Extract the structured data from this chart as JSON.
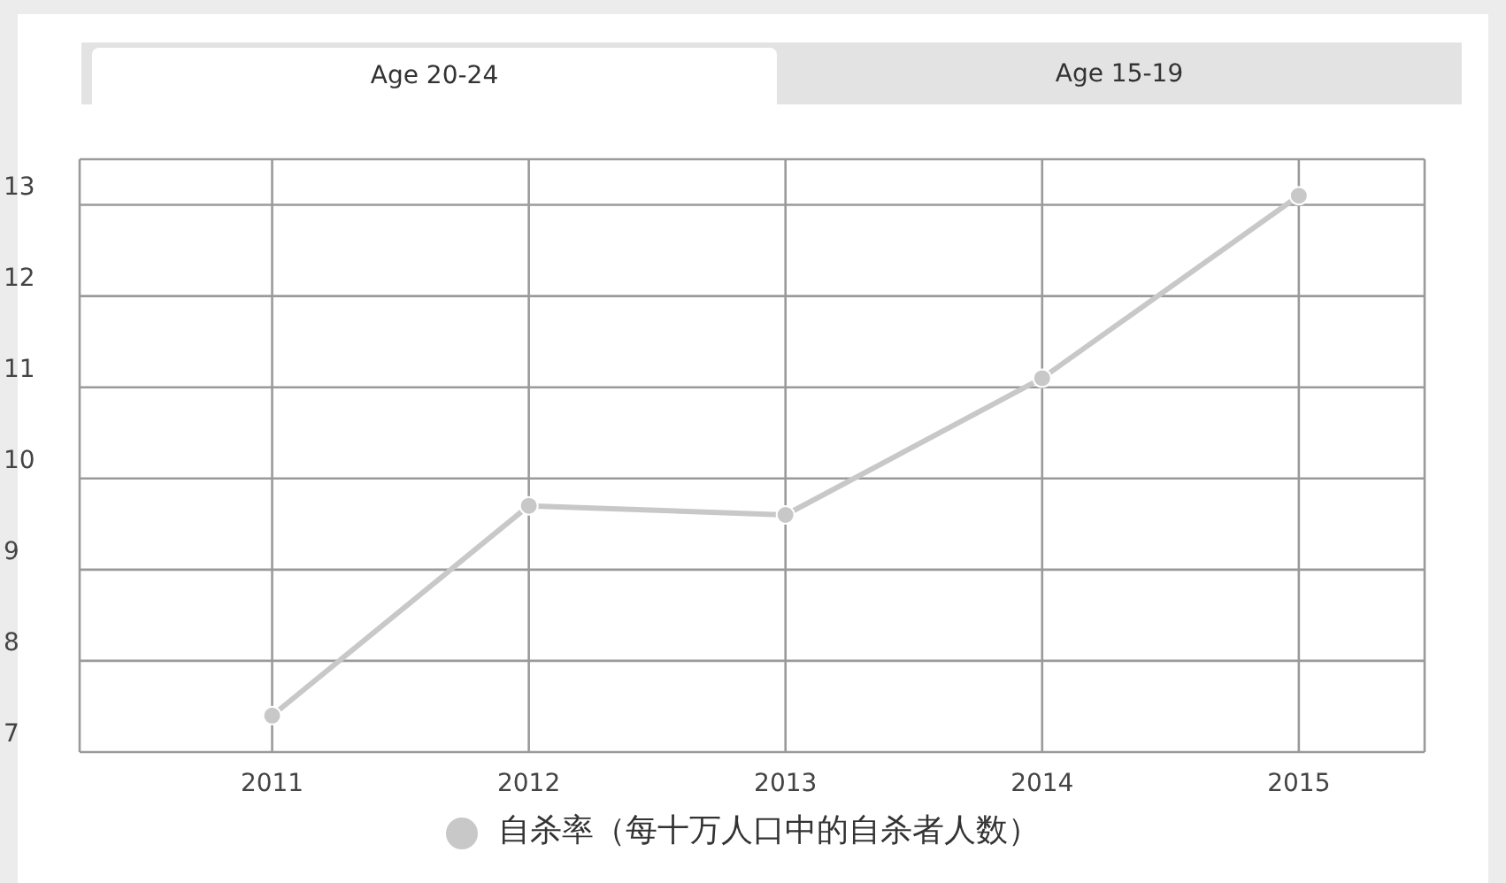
{
  "chart_data": {
    "type": "line",
    "annotations": [
      "Age 20-24",
      "Age 15-19"
    ],
    "categories": [
      "2011",
      "2012",
      "2013",
      "2014",
      "2015"
    ],
    "series": [
      {
        "name": "自杀率（每十万人口中的自杀者人数）",
        "color": "#c8c8c8",
        "values": [
          7.4,
          9.7,
          9.6,
          11.1,
          13.1
        ]
      }
    ],
    "ylim": [
      7,
      13.5
    ],
    "yticks": [
      7,
      8,
      9,
      10,
      11,
      12,
      13
    ],
    "grid": true,
    "legend": "bottom",
    "marker": "circle",
    "line_style": "solid"
  }
}
